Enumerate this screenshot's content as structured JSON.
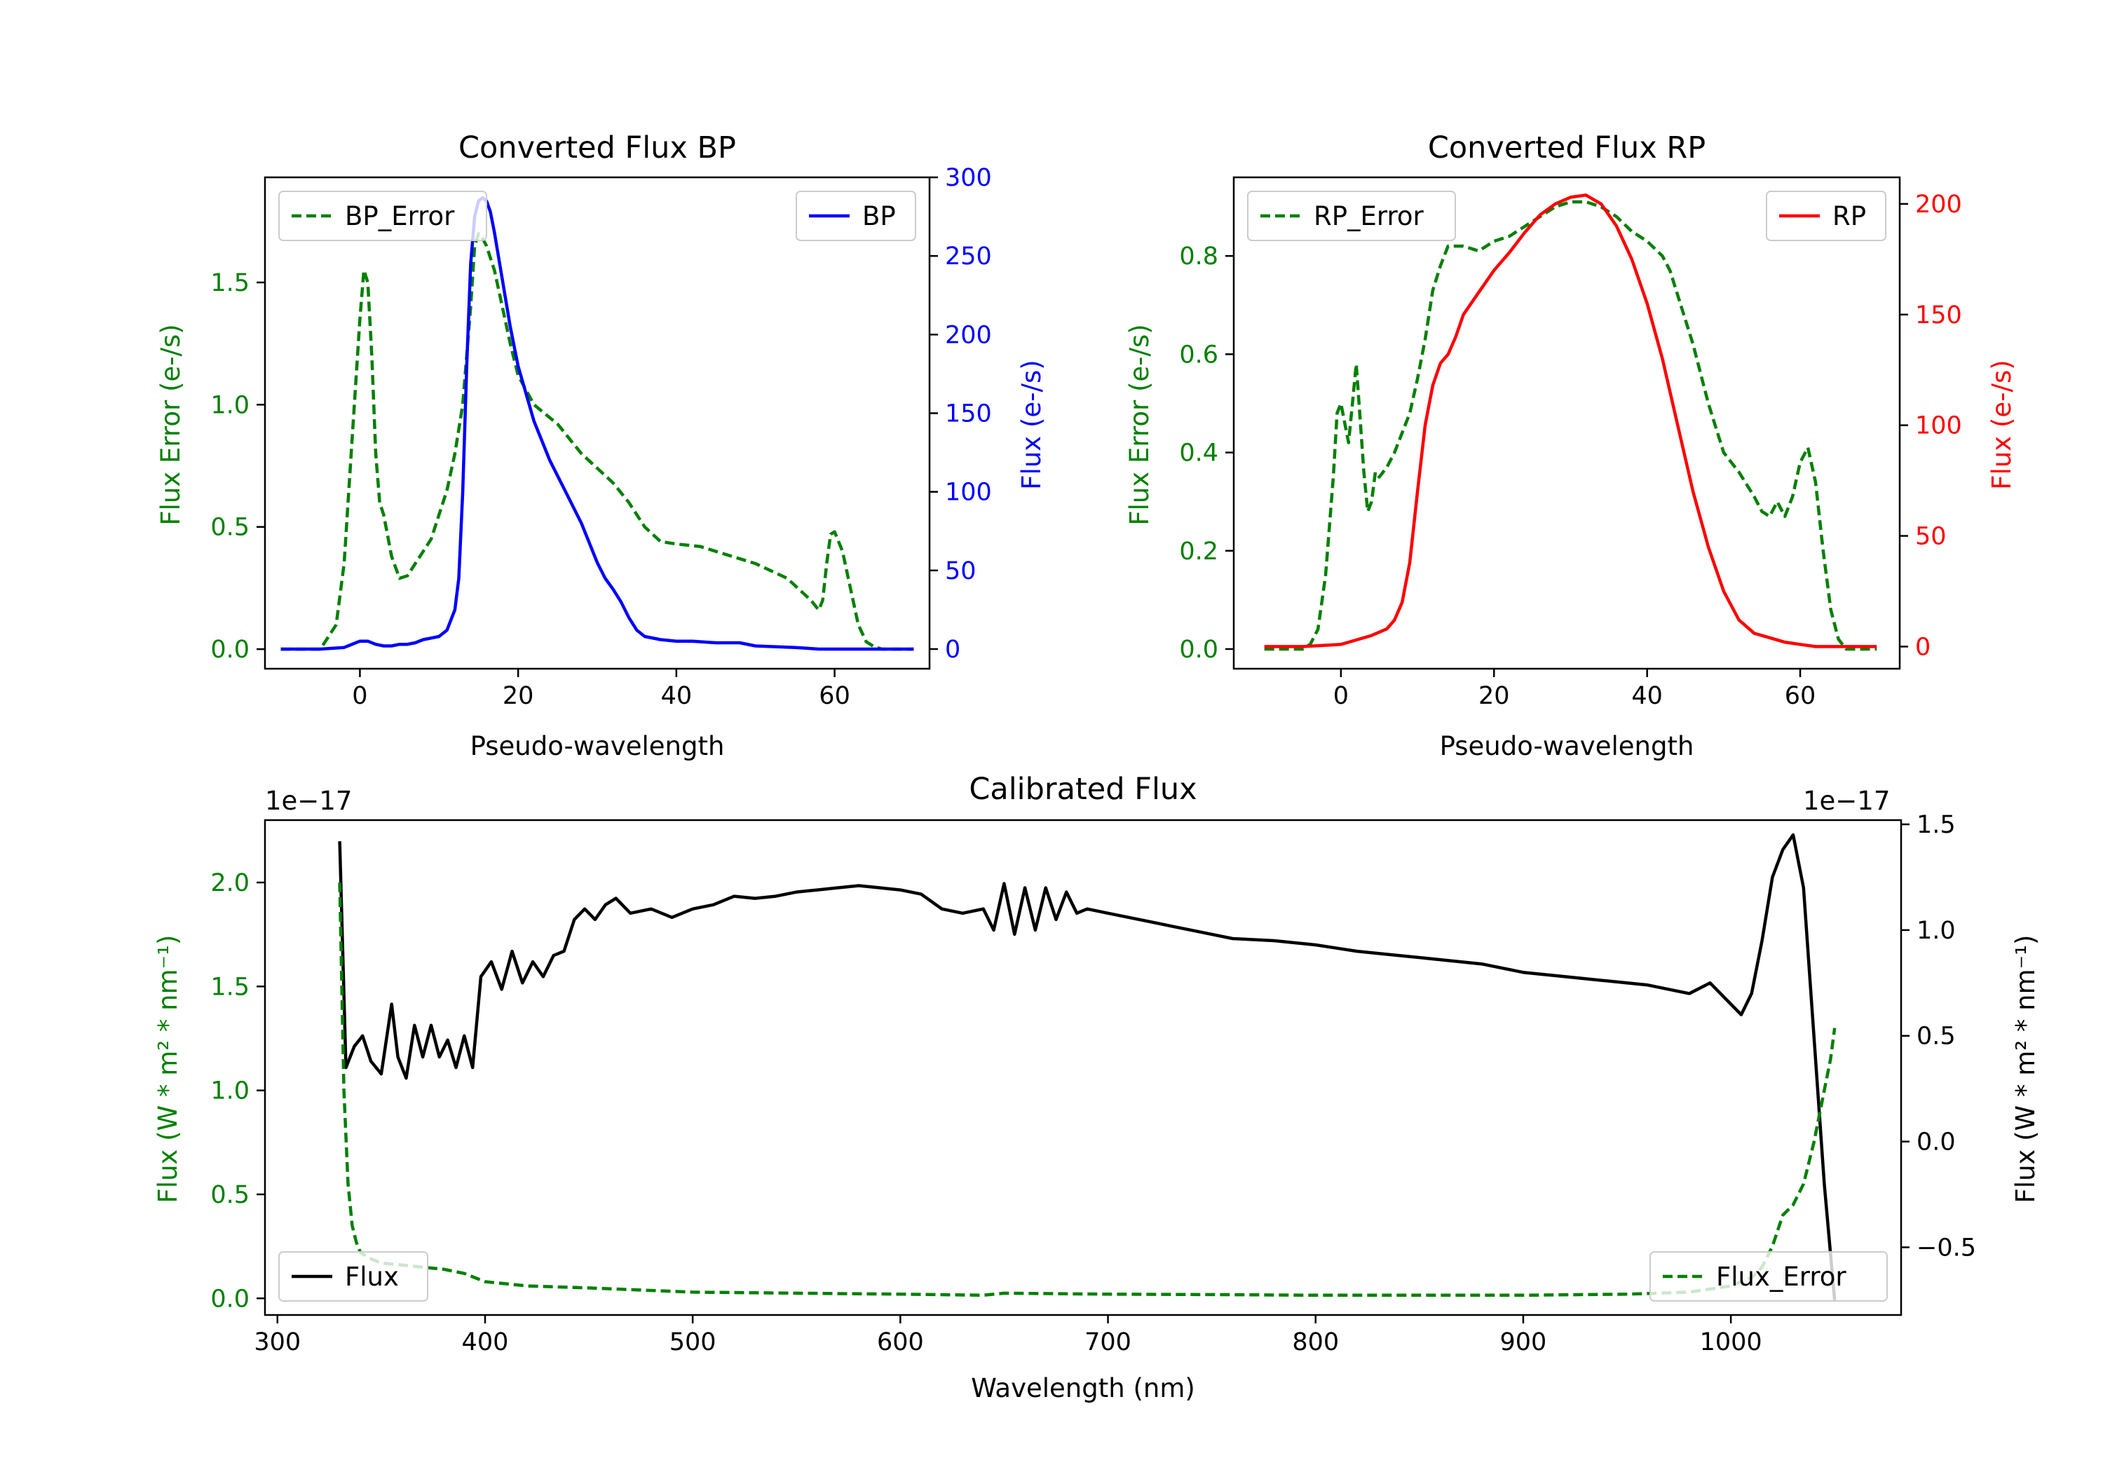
{
  "chart_data": [
    {
      "id": "bp",
      "type": "line",
      "title": "Converted Flux BP",
      "xlabel": "Pseudo-wavelength",
      "ylabel_left": "Flux Error (e-/s)",
      "ylabel_right": "Flux (e-/s)",
      "xlim": [
        -12,
        72
      ],
      "ylim_left": [
        -0.08,
        1.93
      ],
      "ylim_right": [
        -12.5,
        300
      ],
      "xticks": [
        0,
        20,
        40,
        60
      ],
      "yticks_left": [
        0.0,
        0.5,
        1.0,
        1.5
      ],
      "yticks_right": [
        0,
        50,
        100,
        150,
        200,
        250,
        300
      ],
      "exponent_left": "",
      "exponent_right": "",
      "legend_left": {
        "label": "BP_Error",
        "placement": "upper-left"
      },
      "legend_right": {
        "label": "BP",
        "placement": "upper-right"
      },
      "series": [
        {
          "name": "BP_Error",
          "axis": "left",
          "style": "dashed",
          "color": "#008000",
          "x": [
            -10,
            -5,
            -3,
            -2,
            -1,
            0,
            0.5,
            1,
            1.5,
            2,
            2.5,
            3,
            4,
            5,
            6,
            7,
            8,
            9,
            10,
            11,
            12,
            13,
            14,
            14.5,
            15,
            15.5,
            16,
            16.5,
            17,
            18,
            19,
            20,
            22,
            25,
            28,
            30,
            32,
            34,
            36,
            38,
            40,
            43,
            46,
            50,
            54,
            57,
            58,
            58.5,
            59,
            59.5,
            60,
            61,
            62,
            63,
            64,
            65,
            66,
            68,
            70
          ],
          "y": [
            0.0,
            0.0,
            0.1,
            0.35,
            0.85,
            1.35,
            1.55,
            1.5,
            1.2,
            0.8,
            0.6,
            0.55,
            0.38,
            0.29,
            0.3,
            0.35,
            0.4,
            0.45,
            0.55,
            0.65,
            0.8,
            1.0,
            1.4,
            1.65,
            1.7,
            1.68,
            1.65,
            1.6,
            1.55,
            1.4,
            1.25,
            1.12,
            1.0,
            0.92,
            0.8,
            0.74,
            0.68,
            0.6,
            0.5,
            0.44,
            0.43,
            0.42,
            0.39,
            0.35,
            0.29,
            0.2,
            0.16,
            0.2,
            0.35,
            0.47,
            0.48,
            0.4,
            0.25,
            0.1,
            0.03,
            0.01,
            0.0,
            0.0,
            0.0
          ]
        },
        {
          "name": "BP",
          "axis": "right",
          "style": "solid",
          "color": "#0000ff",
          "x": [
            -10,
            -5,
            -2,
            0,
            1,
            2,
            3,
            4,
            5,
            6,
            7,
            8,
            9,
            10,
            11,
            12,
            12.5,
            13,
            13.5,
            14,
            14.5,
            15,
            15.5,
            16,
            16.5,
            17,
            18,
            19,
            20,
            22,
            24,
            26,
            28,
            30,
            31,
            32,
            33,
            34,
            35,
            36,
            38,
            40,
            42,
            45,
            48,
            50,
            55,
            58,
            60,
            65,
            70
          ],
          "y": [
            0,
            0,
            1,
            5,
            5,
            3,
            2,
            2,
            3,
            3,
            4,
            6,
            7,
            8,
            12,
            25,
            45,
            100,
            180,
            245,
            275,
            285,
            287,
            285,
            278,
            265,
            235,
            205,
            180,
            145,
            120,
            100,
            80,
            55,
            45,
            38,
            30,
            20,
            12,
            8,
            6,
            5,
            5,
            4,
            4,
            2,
            1,
            0,
            0,
            0,
            0
          ]
        }
      ]
    },
    {
      "id": "rp",
      "type": "line",
      "title": "Converted Flux RP",
      "xlabel": "Pseudo-wavelength",
      "ylabel_left": "Flux Error (e-/s)",
      "ylabel_right": "Flux (e-/s)",
      "xlim": [
        -14,
        73
      ],
      "ylim_left": [
        -0.04,
        0.96
      ],
      "ylim_right": [
        -10,
        212
      ],
      "xticks": [
        0,
        20,
        40,
        60
      ],
      "yticks_left": [
        0.0,
        0.2,
        0.4,
        0.6,
        0.8
      ],
      "yticks_right": [
        0,
        50,
        100,
        150,
        200
      ],
      "exponent_left": "",
      "exponent_right": "",
      "legend_left": {
        "label": "RP_Error",
        "placement": "upper-left"
      },
      "legend_right": {
        "label": "RP",
        "placement": "upper-right"
      },
      "series": [
        {
          "name": "RP_Error",
          "axis": "left",
          "style": "dashed",
          "color": "#008000",
          "x": [
            -10,
            -5,
            -4,
            -3,
            -2,
            -1,
            -0.5,
            0,
            0.5,
            1,
            1.5,
            2,
            2.5,
            3,
            3.5,
            4,
            4.5,
            5,
            6,
            7,
            8,
            9,
            10,
            11,
            12,
            13,
            14,
            16,
            18,
            20,
            22,
            24,
            26,
            28,
            30,
            32,
            34,
            36,
            38,
            40,
            42,
            43,
            44,
            45,
            46,
            47,
            48,
            49,
            50,
            52,
            54,
            55,
            56,
            57,
            58,
            59,
            60,
            61,
            62,
            63,
            64,
            65,
            66,
            70
          ],
          "y": [
            0.0,
            0.0,
            0.01,
            0.04,
            0.15,
            0.35,
            0.48,
            0.5,
            0.46,
            0.42,
            0.5,
            0.58,
            0.47,
            0.36,
            0.28,
            0.3,
            0.36,
            0.35,
            0.37,
            0.4,
            0.44,
            0.48,
            0.55,
            0.63,
            0.73,
            0.78,
            0.82,
            0.82,
            0.81,
            0.83,
            0.84,
            0.86,
            0.88,
            0.9,
            0.91,
            0.91,
            0.9,
            0.88,
            0.85,
            0.83,
            0.8,
            0.77,
            0.72,
            0.67,
            0.62,
            0.56,
            0.5,
            0.45,
            0.4,
            0.36,
            0.31,
            0.28,
            0.27,
            0.3,
            0.27,
            0.31,
            0.38,
            0.41,
            0.34,
            0.2,
            0.08,
            0.02,
            0.0,
            0.0
          ]
        },
        {
          "name": "RP",
          "axis": "right",
          "style": "solid",
          "color": "#ff0000",
          "x": [
            -10,
            -5,
            0,
            2,
            4,
            6,
            7,
            8,
            9,
            10,
            11,
            12,
            13,
            14,
            15,
            16,
            17,
            18,
            20,
            22,
            24,
            26,
            28,
            30,
            32,
            34,
            36,
            38,
            40,
            42,
            44,
            46,
            48,
            50,
            52,
            54,
            56,
            58,
            60,
            62,
            64,
            66,
            70
          ],
          "y": [
            0,
            0,
            1,
            3,
            5,
            8,
            12,
            20,
            38,
            70,
            100,
            118,
            128,
            132,
            140,
            150,
            155,
            160,
            170,
            178,
            187,
            195,
            200,
            203,
            204,
            200,
            190,
            175,
            155,
            130,
            100,
            70,
            45,
            25,
            12,
            6,
            4,
            2,
            1,
            0,
            0,
            0,
            0
          ]
        }
      ]
    },
    {
      "id": "cal",
      "type": "line",
      "title": "Calibrated Flux",
      "xlabel": "Wavelength (nm)",
      "ylabel_left": "Flux (W * m² * nm⁻¹)",
      "ylabel_right": "Flux (W * m² * nm⁻¹)",
      "xlim": [
        294,
        1082
      ],
      "ylim_left": [
        -0.08,
        2.3
      ],
      "ylim_right": [
        -0.82,
        1.52
      ],
      "xticks": [
        300,
        400,
        500,
        600,
        700,
        800,
        900,
        1000
      ],
      "yticks_left": [
        0.0,
        0.5,
        1.0,
        1.5,
        2.0
      ],
      "yticks_right": [
        -0.5,
        0.0,
        0.5,
        1.0,
        1.5
      ],
      "exponent_left": "1e−17",
      "exponent_right": "1e−17",
      "legend_left": {
        "label": "Flux",
        "placement": "lower-left"
      },
      "legend_right": {
        "label": "Flux_Error",
        "placement": "lower-right"
      },
      "series": [
        {
          "name": "Flux",
          "axis": "right",
          "style": "solid",
          "color": "#000000",
          "x": [
            330,
            333,
            337,
            341,
            345,
            350,
            355,
            358,
            362,
            366,
            370,
            374,
            378,
            382,
            386,
            390,
            394,
            398,
            403,
            408,
            413,
            418,
            423,
            428,
            433,
            438,
            443,
            448,
            453,
            458,
            463,
            470,
            480,
            490,
            500,
            510,
            520,
            530,
            540,
            550,
            560,
            570,
            580,
            590,
            600,
            610,
            620,
            630,
            640,
            645,
            650,
            655,
            660,
            665,
            670,
            675,
            680,
            685,
            690,
            700,
            710,
            720,
            730,
            740,
            750,
            760,
            780,
            800,
            820,
            840,
            860,
            880,
            900,
            920,
            940,
            960,
            980,
            990,
            1000,
            1005,
            1010,
            1015,
            1020,
            1025,
            1030,
            1035,
            1040,
            1045,
            1050
          ],
          "y": [
            1.42,
            0.35,
            0.45,
            0.5,
            0.38,
            0.32,
            0.65,
            0.4,
            0.3,
            0.55,
            0.4,
            0.55,
            0.4,
            0.48,
            0.35,
            0.5,
            0.35,
            0.78,
            0.85,
            0.72,
            0.9,
            0.75,
            0.85,
            0.78,
            0.88,
            0.9,
            1.05,
            1.1,
            1.05,
            1.12,
            1.15,
            1.08,
            1.1,
            1.06,
            1.1,
            1.12,
            1.16,
            1.15,
            1.16,
            1.18,
            1.19,
            1.2,
            1.21,
            1.2,
            1.19,
            1.17,
            1.1,
            1.08,
            1.1,
            1.0,
            1.22,
            0.98,
            1.2,
            1.0,
            1.2,
            1.05,
            1.18,
            1.08,
            1.1,
            1.08,
            1.06,
            1.04,
            1.02,
            1.0,
            0.98,
            0.96,
            0.95,
            0.93,
            0.9,
            0.88,
            0.86,
            0.84,
            0.8,
            0.78,
            0.76,
            0.74,
            0.7,
            0.75,
            0.65,
            0.6,
            0.7,
            0.95,
            1.25,
            1.38,
            1.45,
            1.2,
            0.5,
            -0.2,
            -0.75
          ]
        },
        {
          "name": "Flux_Error",
          "axis": "left",
          "style": "dashed",
          "color": "#008000",
          "x": [
            330,
            332,
            334,
            336,
            338,
            340,
            345,
            350,
            360,
            370,
            380,
            390,
            400,
            420,
            450,
            500,
            550,
            600,
            640,
            650,
            700,
            750,
            800,
            850,
            900,
            950,
            980,
            1000,
            1010,
            1015,
            1020,
            1025,
            1030,
            1035,
            1040,
            1045,
            1048,
            1050
          ],
          "y": [
            2.0,
            1.0,
            0.55,
            0.35,
            0.27,
            0.22,
            0.19,
            0.17,
            0.16,
            0.15,
            0.14,
            0.12,
            0.08,
            0.06,
            0.05,
            0.03,
            0.025,
            0.02,
            0.015,
            0.025,
            0.02,
            0.018,
            0.015,
            0.015,
            0.015,
            0.02,
            0.03,
            0.06,
            0.1,
            0.15,
            0.25,
            0.4,
            0.45,
            0.55,
            0.75,
            1.0,
            1.15,
            1.3
          ]
        }
      ]
    }
  ]
}
